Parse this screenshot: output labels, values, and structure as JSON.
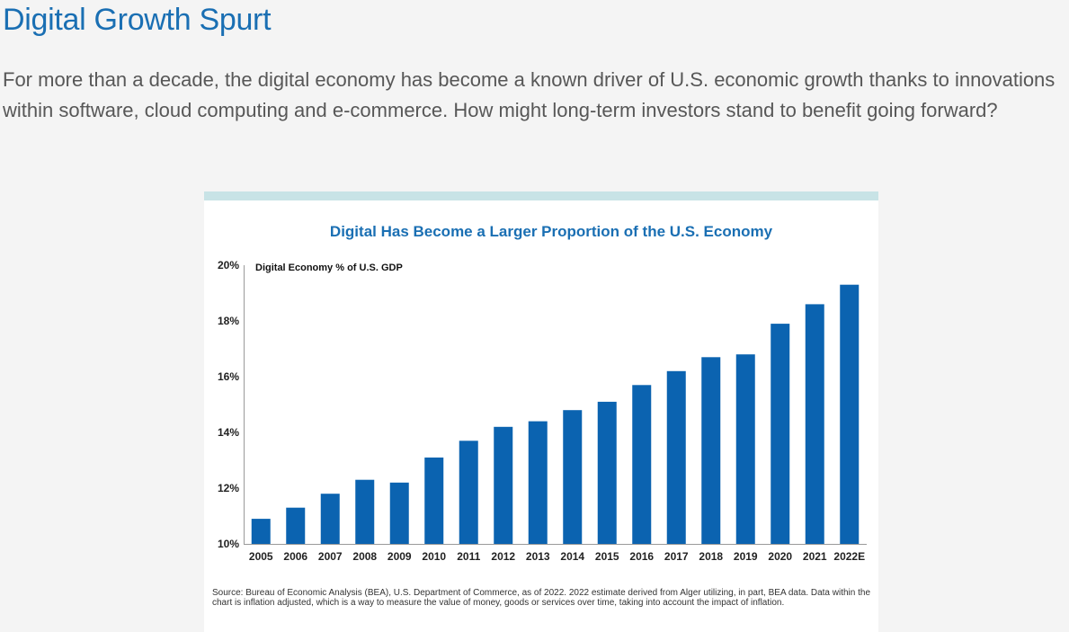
{
  "page": {
    "title": "Digital Growth Spurt",
    "intro": "For more than a decade, the digital economy has become a known driver of U.S. economic growth thanks to innovations within software, cloud computing and e-commerce. How might long-term investors stand to benefit going forward?"
  },
  "colors": {
    "title": "#1a6fb3",
    "bar": "#0b63b0",
    "accent_bar": "#c8e3e6",
    "text": "#575757"
  },
  "chart_data": {
    "type": "bar",
    "title": "Digital Has Become a Larger Proportion of the U.S. Economy",
    "series_label": "Digital Economy % of U.S. GDP",
    "xlabel": "",
    "ylabel": "",
    "ylim": [
      10,
      20
    ],
    "yticks": [
      "20%",
      "18%",
      "16%",
      "14%",
      "12%",
      "10%"
    ],
    "ytick_values": [
      20,
      18,
      16,
      14,
      12,
      10
    ],
    "categories": [
      "2005",
      "2006",
      "2007",
      "2008",
      "2009",
      "2010",
      "2011",
      "2012",
      "2013",
      "2014",
      "2015",
      "2016",
      "2017",
      "2018",
      "2019",
      "2020",
      "2021",
      "2022E"
    ],
    "values": [
      10.9,
      11.3,
      11.8,
      12.3,
      12.2,
      13.1,
      13.7,
      14.2,
      14.4,
      14.8,
      15.1,
      15.7,
      16.2,
      16.7,
      16.8,
      17.9,
      18.6,
      19.3
    ],
    "grid": false,
    "legend": "none",
    "source": "Source: Bureau of Economic Analysis (BEA), U.S. Department of Commerce, as of 2022. 2022 estimate derived from Alger utilizing, in part, BEA data. Data within the chart is inflation adjusted, which is a way to measure the value of money, goods or services over time, taking into account the impact of inflation."
  }
}
